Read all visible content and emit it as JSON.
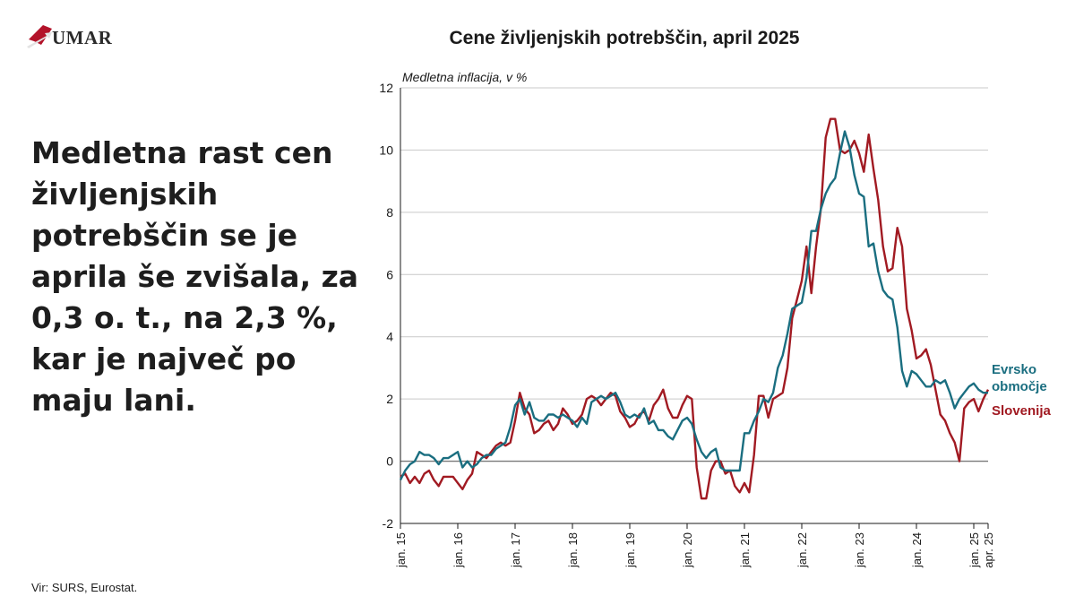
{
  "brand": {
    "name": "UMAR",
    "logo_color": "#b3132a"
  },
  "headline": "Medletna rast cen življenjskih potrebščin se je aprila še zvišala, za 0,3 o. t., na 2,3 %, kar je največ po maju lani.",
  "source": "Vir: SURS, Eurostat.",
  "chart_data": {
    "type": "line",
    "title": "Cene življenjskih potrebščin, april 2025",
    "ylabel": "Medletna inflacija, v %",
    "xlabel": "",
    "ylim": [
      -2,
      12
    ],
    "yticks": [
      -2,
      0,
      2,
      4,
      6,
      8,
      10,
      12
    ],
    "grid": true,
    "xlim": [
      "2015-01",
      "2025-04"
    ],
    "xticks": [
      {
        "date": "2015-01",
        "label": "jan. 15"
      },
      {
        "date": "2016-01",
        "label": "jan. 16"
      },
      {
        "date": "2017-01",
        "label": "jan. 17"
      },
      {
        "date": "2018-01",
        "label": "jan. 18"
      },
      {
        "date": "2019-01",
        "label": "jan. 19"
      },
      {
        "date": "2020-01",
        "label": "jan. 20"
      },
      {
        "date": "2021-01",
        "label": "jan. 21"
      },
      {
        "date": "2022-01",
        "label": "jan. 22"
      },
      {
        "date": "2023-01",
        "label": "jan. 23"
      },
      {
        "date": "2024-01",
        "label": "jan. 24"
      },
      {
        "date": "2025-01",
        "label": "jan. 25"
      },
      {
        "date": "2025-04",
        "label": "apr. 25"
      }
    ],
    "x_start": "2015-01",
    "series": [
      {
        "name": "Evrsko območje",
        "color": "#1a6e80",
        "values": [
          -0.6,
          -0.3,
          -0.1,
          0.0,
          0.3,
          0.2,
          0.2,
          0.1,
          -0.1,
          0.1,
          0.1,
          0.2,
          0.3,
          -0.2,
          0.0,
          -0.2,
          -0.1,
          0.1,
          0.2,
          0.2,
          0.4,
          0.5,
          0.6,
          1.1,
          1.8,
          2.0,
          1.5,
          1.9,
          1.4,
          1.3,
          1.3,
          1.5,
          1.5,
          1.4,
          1.5,
          1.4,
          1.3,
          1.1,
          1.4,
          1.2,
          1.9,
          2.0,
          2.1,
          2.0,
          2.1,
          2.2,
          1.9,
          1.5,
          1.4,
          1.5,
          1.4,
          1.7,
          1.2,
          1.3,
          1.0,
          1.0,
          0.8,
          0.7,
          1.0,
          1.3,
          1.4,
          1.2,
          0.7,
          0.3,
          0.1,
          0.3,
          0.4,
          -0.2,
          -0.3,
          -0.3,
          -0.3,
          -0.3,
          0.9,
          0.9,
          1.3,
          1.6,
          2.0,
          1.9,
          2.2,
          3.0,
          3.4,
          4.1,
          4.9,
          5.0,
          5.1,
          5.9,
          7.4,
          7.4,
          8.1,
          8.6,
          8.9,
          9.1,
          9.9,
          10.6,
          10.1,
          9.2,
          8.6,
          8.5,
          6.9,
          7.0,
          6.1,
          5.5,
          5.3,
          5.2,
          4.3,
          2.9,
          2.4,
          2.9,
          2.8,
          2.6,
          2.4,
          2.4,
          2.6,
          2.5,
          2.6,
          2.2,
          1.7,
          2.0,
          2.2,
          2.4,
          2.5,
          2.3,
          2.2,
          2.2
        ]
      },
      {
        "name": "Slovenija",
        "color": "#a11a22",
        "values": [
          -0.5,
          -0.4,
          -0.7,
          -0.5,
          -0.7,
          -0.4,
          -0.3,
          -0.6,
          -0.8,
          -0.5,
          -0.5,
          -0.5,
          -0.7,
          -0.9,
          -0.6,
          -0.4,
          0.3,
          0.2,
          0.1,
          0.3,
          0.5,
          0.6,
          0.5,
          0.6,
          1.3,
          2.2,
          1.7,
          1.5,
          0.9,
          1.0,
          1.2,
          1.3,
          1.0,
          1.2,
          1.7,
          1.5,
          1.2,
          1.3,
          1.5,
          2.0,
          2.1,
          2.0,
          1.8,
          2.0,
          2.2,
          2.1,
          1.6,
          1.4,
          1.1,
          1.2,
          1.5,
          1.6,
          1.3,
          1.8,
          2.0,
          2.3,
          1.7,
          1.4,
          1.4,
          1.8,
          2.1,
          2.0,
          -0.2,
          -1.2,
          -1.2,
          -0.3,
          0.0,
          0.0,
          -0.4,
          -0.3,
          -0.8,
          -1.0,
          -0.7,
          -1.0,
          0.2,
          2.1,
          2.1,
          1.4,
          2.0,
          2.1,
          2.2,
          3.0,
          4.6,
          5.2,
          5.8,
          6.9,
          5.4,
          6.9,
          8.1,
          10.4,
          11.0,
          11.0,
          10.0,
          9.9,
          10.0,
          10.3,
          9.9,
          9.3,
          10.5,
          9.4,
          8.4,
          6.9,
          6.1,
          6.2,
          7.5,
          6.9,
          4.9,
          4.2,
          3.3,
          3.4,
          3.6,
          3.1,
          2.3,
          1.5,
          1.3,
          0.9,
          0.6,
          0.0,
          1.7,
          1.9,
          2.0,
          1.6,
          2.0,
          2.3
        ]
      }
    ]
  }
}
